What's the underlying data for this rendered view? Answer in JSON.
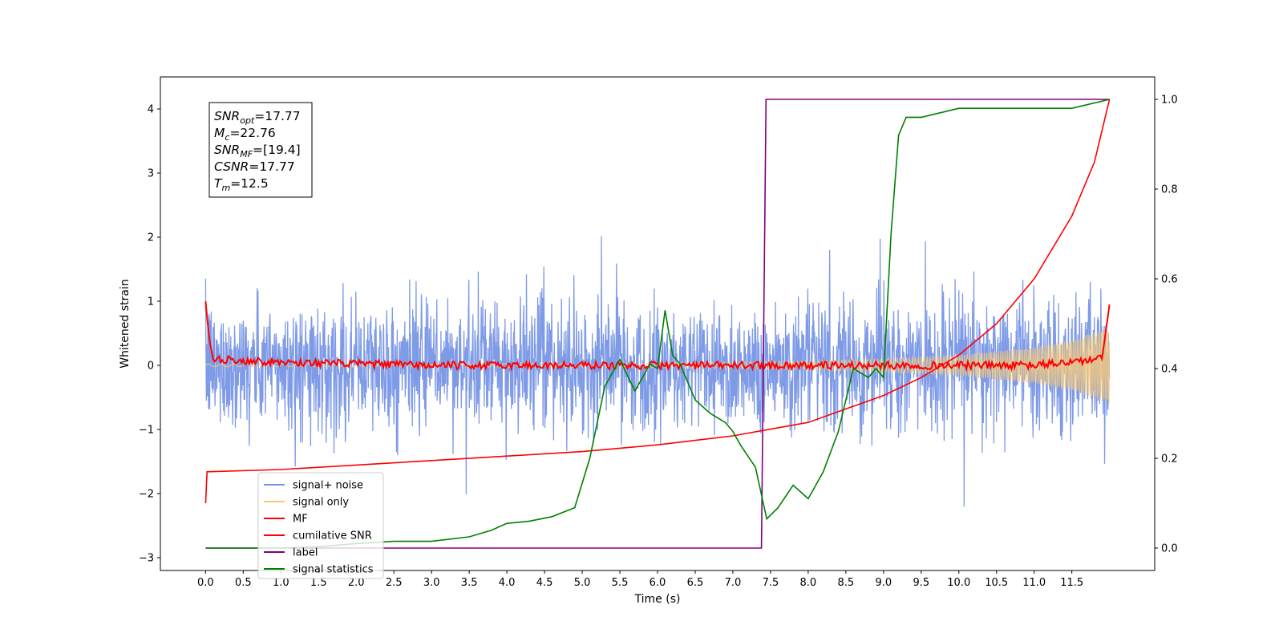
{
  "chart_data": {
    "type": "line",
    "xlabel": "Time (s)",
    "ylabel": "Whitened strain",
    "xlim": [
      -0.6,
      12.6
    ],
    "ylim_left": [
      -3.2,
      4.5
    ],
    "ylim_right": [
      -0.05,
      1.05
    ],
    "x_ticks": [
      "0.0",
      "0.5",
      "1.0",
      "1.5",
      "2.0",
      "2.5",
      "3.0",
      "3.5",
      "4.0",
      "4.5",
      "5.0",
      "5.5",
      "6.0",
      "6.5",
      "7.0",
      "7.5",
      "8.0",
      "8.5",
      "9.0",
      "9.5",
      "10.0",
      "10.5",
      "11.0",
      "11.5"
    ],
    "y_ticks_left": [
      "−3",
      "−2",
      "−1",
      "0",
      "1",
      "2",
      "3",
      "4"
    ],
    "y_ticks_right": [
      "0.0",
      "0.2",
      "0.4",
      "0.6",
      "0.8",
      "1.0"
    ],
    "grid": false,
    "legend_position": "lower-left",
    "annotation_lines": [
      {
        "var": "SNR",
        "sub": "opt",
        "text": "=17.77"
      },
      {
        "var": "M",
        "sub": "c",
        "text": "=22.76"
      },
      {
        "var": "SNR",
        "sub": "MF",
        "text": "=[19.4]"
      },
      {
        "var": "CSNR",
        "sub": "",
        "text": "=17.77"
      },
      {
        "var": "T",
        "sub": "m",
        "text": "=12.5"
      }
    ],
    "series": [
      {
        "name": "signal+ noise",
        "color": "#7896e6",
        "axis": "left",
        "kind": "noisy strain, amplitude ~±1.5 with spikes to ~±2.3",
        "envelope_x": [
          0,
          6,
          12
        ],
        "envelope_y": [
          0.75,
          0.75,
          0.8
        ]
      },
      {
        "name": "signal only",
        "color": "#f5c97a",
        "axis": "left",
        "kind": "chirp with growing amplitude",
        "x": [
          0,
          2,
          4,
          6,
          8,
          9,
          10,
          11,
          11.5,
          12
        ],
        "amplitude": [
          0.02,
          0.02,
          0.03,
          0.04,
          0.07,
          0.1,
          0.16,
          0.28,
          0.4,
          0.6
        ]
      },
      {
        "name": "MF",
        "color": "#ff0000",
        "axis": "left",
        "x": [
          0,
          0.05,
          0.1,
          1,
          3,
          5,
          7,
          9,
          11,
          11.9,
          12.0
        ],
        "y": [
          1.0,
          0.4,
          0.1,
          0.05,
          0.0,
          0.0,
          0.0,
          0.0,
          0.0,
          0.1,
          0.95
        ]
      },
      {
        "name": "cumilative SNR",
        "color": "#ff0000",
        "axis": "right",
        "x": [
          0,
          0.02,
          1,
          2,
          3,
          4,
          5,
          6,
          7,
          7.5,
          8,
          8.5,
          9,
          9.5,
          10,
          10.5,
          11,
          11.5,
          11.8,
          12.0
        ],
        "y": [
          0.1,
          0.17,
          0.175,
          0.185,
          0.195,
          0.205,
          0.215,
          0.23,
          0.25,
          0.265,
          0.28,
          0.31,
          0.34,
          0.38,
          0.43,
          0.5,
          0.6,
          0.74,
          0.86,
          1.0
        ]
      },
      {
        "name": "label",
        "color": "#800080",
        "axis": "right",
        "x": [
          0,
          7.38,
          7.44,
          12.0
        ],
        "y": [
          0.0,
          0.0,
          1.0,
          1.0
        ]
      },
      {
        "name": "signal statistics",
        "color": "#008000",
        "axis": "right",
        "x": [
          0,
          0.5,
          1.0,
          1.5,
          2.0,
          2.5,
          3.0,
          3.5,
          3.8,
          4.0,
          4.3,
          4.6,
          4.9,
          5.1,
          5.3,
          5.5,
          5.7,
          5.9,
          6.0,
          6.1,
          6.2,
          6.3,
          6.5,
          6.7,
          6.9,
          7.0,
          7.1,
          7.3,
          7.45,
          7.6,
          7.8,
          8.0,
          8.2,
          8.4,
          8.6,
          8.8,
          8.9,
          9.0,
          9.1,
          9.2,
          9.3,
          9.5,
          10.0,
          10.5,
          11.0,
          11.5,
          12.0
        ],
        "y": [
          0.0,
          0.0,
          0.0,
          0.003,
          0.01,
          0.015,
          0.015,
          0.025,
          0.04,
          0.055,
          0.06,
          0.07,
          0.09,
          0.2,
          0.36,
          0.42,
          0.35,
          0.41,
          0.4,
          0.53,
          0.43,
          0.41,
          0.33,
          0.3,
          0.28,
          0.26,
          0.23,
          0.18,
          0.065,
          0.09,
          0.14,
          0.11,
          0.17,
          0.26,
          0.4,
          0.38,
          0.4,
          0.38,
          0.7,
          0.92,
          0.96,
          0.96,
          0.98,
          0.98,
          0.98,
          0.98,
          1.0
        ]
      }
    ]
  }
}
